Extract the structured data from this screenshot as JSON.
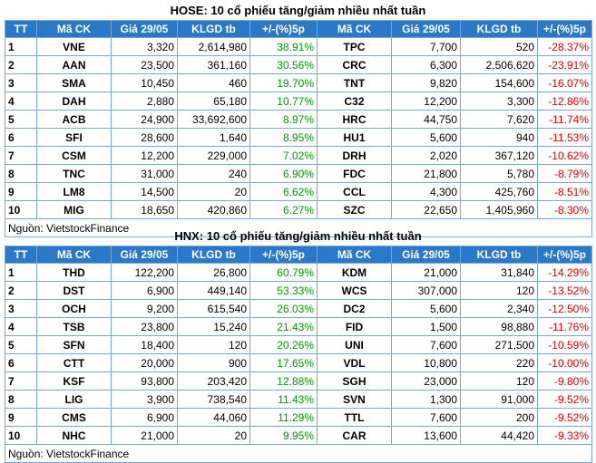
{
  "hose": {
    "title": "HOSE: 10 cổ phiếu tăng/giảm nhiều nhất tuần",
    "headers": [
      "TT",
      "Mã CK",
      "Giá 29/05",
      "KLGD tb",
      "+/-(%)5p",
      "Mã CK",
      "Giá 29/05",
      "KLGD tb",
      "+/-(%)5p"
    ],
    "rows": [
      [
        "1",
        "VNE",
        "3,320",
        "2,614,980",
        "38.91%",
        "TPC",
        "7,700",
        "520",
        "-28.37%"
      ],
      [
        "2",
        "AAN",
        "23,500",
        "361,160",
        "30.56%",
        "CRC",
        "6,300",
        "2,506,620",
        "-23.91%"
      ],
      [
        "3",
        "SMA",
        "10,450",
        "460",
        "19.70%",
        "TNT",
        "9,820",
        "154,600",
        "-16.07%"
      ],
      [
        "4",
        "DAH",
        "2,880",
        "65,180",
        "10.77%",
        "C32",
        "12,200",
        "3,300",
        "-12.86%"
      ],
      [
        "5",
        "ACB",
        "24,900",
        "33,692,600",
        "8.97%",
        "HRC",
        "44,750",
        "7,620",
        "-11.74%"
      ],
      [
        "6",
        "SFI",
        "28,600",
        "1,640",
        "8.95%",
        "HU1",
        "5,600",
        "940",
        "-11.53%"
      ],
      [
        "7",
        "CSM",
        "12,200",
        "229,000",
        "7.02%",
        "DRH",
        "2,020",
        "367,120",
        "-10.62%"
      ],
      [
        "8",
        "TNC",
        "31,000",
        "240",
        "6.90%",
        "FDC",
        "21,800",
        "5,780",
        "-8.79%"
      ],
      [
        "9",
        "LM8",
        "14,500",
        "20",
        "6.62%",
        "CCL",
        "4,300",
        "425,760",
        "-8.51%"
      ],
      [
        "10",
        "MIG",
        "18,650",
        "420,860",
        "6.27%",
        "SZC",
        "22,650",
        "1,405,960",
        "-8.30%"
      ]
    ],
    "source": "Nguồn: VietstockFinance"
  },
  "hnx": {
    "title": "HNX: 10 cổ phiếu tăng/giảm nhiều nhất tuần",
    "headers": [
      "TT",
      "Mã CK",
      "Giá 29/05",
      "KLGD tb",
      "+/-(%)5p",
      "Mã CK",
      "Giá 29/05",
      "KLGD tb",
      "+/-(%)5p"
    ],
    "rows": [
      [
        "1",
        "THD",
        "122,200",
        "26,800",
        "60.79%",
        "KDM",
        "21,000",
        "31,840",
        "-14.29%"
      ],
      [
        "2",
        "DST",
        "6,900",
        "449,140",
        "53.33%",
        "WCS",
        "307,000",
        "120",
        "-13.52%"
      ],
      [
        "3",
        "OCH",
        "9,200",
        "615,540",
        "26.03%",
        "DC2",
        "5,600",
        "2,340",
        "-12.50%"
      ],
      [
        "4",
        "TSB",
        "23,800",
        "15,240",
        "21.43%",
        "FID",
        "1,500",
        "98,880",
        "-11.76%"
      ],
      [
        "5",
        "SFN",
        "18,400",
        "120",
        "20.26%",
        "UNI",
        "7,600",
        "271,500",
        "-10.59%"
      ],
      [
        "6",
        "CTT",
        "20,000",
        "900",
        "17.65%",
        "VDL",
        "10,800",
        "220",
        "-10.00%"
      ],
      [
        "7",
        "KSF",
        "93,800",
        "203,420",
        "12.88%",
        "SGH",
        "23,000",
        "120",
        "-9.80%"
      ],
      [
        "8",
        "LIG",
        "3,900",
        "738,540",
        "11.43%",
        "SVN",
        "1,300",
        "91,000",
        "-9.52%"
      ],
      [
        "9",
        "CMS",
        "6,900",
        "44,060",
        "11.29%",
        "TTL",
        "7,600",
        "200",
        "-9.52%"
      ],
      [
        "10",
        "NHC",
        "21,000",
        "20",
        "9.95%",
        "CAR",
        "13,600",
        "44,420",
        "-9.33%"
      ]
    ],
    "source": "Nguồn: VietstockFinance"
  },
  "colors": {
    "header_bg": "#2a78c8",
    "gain": "#009900",
    "loss": "#e00000",
    "grid": "#7aa6d6"
  }
}
